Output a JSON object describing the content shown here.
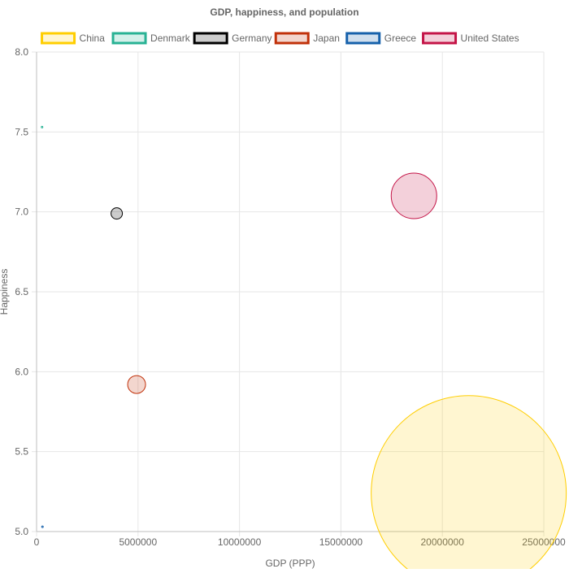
{
  "chart_data": {
    "type": "bubble",
    "title": "GDP, happiness, and population",
    "xlabel": "GDP (PPP)",
    "ylabel": "Happiness",
    "xlim": [
      0,
      25000000
    ],
    "ylim": [
      5.0,
      8.0
    ],
    "x_ticks": [
      0,
      5000000,
      10000000,
      15000000,
      20000000,
      25000000
    ],
    "x_tick_labels": [
      "0",
      "5000000",
      "10000000",
      "15000000",
      "20000000",
      "25000000"
    ],
    "y_ticks": [
      5.0,
      5.5,
      6.0,
      6.5,
      7.0,
      7.5,
      8.0
    ],
    "y_tick_labels": [
      "5.0",
      "5.5",
      "6.0",
      "6.5",
      "7.0",
      "7.5",
      "8.0"
    ],
    "grid": true,
    "legend_position": "top",
    "series": [
      {
        "name": "China",
        "color": "#ffce00",
        "fill": "rgba(255,206,0,0.18)",
        "points": [
          {
            "x": 21300000,
            "y": 5.24,
            "r": 120
          }
        ]
      },
      {
        "name": "Denmark",
        "color": "#28b294",
        "fill": "rgba(40,178,148,0.2)",
        "points": [
          {
            "x": 270000,
            "y": 7.53,
            "r": 1
          }
        ]
      },
      {
        "name": "Germany",
        "color": "#000000",
        "fill": "rgba(0,0,0,0.2)",
        "points": [
          {
            "x": 3950000,
            "y": 6.99,
            "r": 7
          }
        ]
      },
      {
        "name": "Japan",
        "color": "#c1310a",
        "fill": "rgba(193,49,10,0.2)",
        "points": [
          {
            "x": 4930000,
            "y": 5.92,
            "r": 11
          }
        ]
      },
      {
        "name": "Greece",
        "color": "#1661ab",
        "fill": "rgba(22,97,171,0.2)",
        "points": [
          {
            "x": 290000,
            "y": 5.03,
            "r": 1
          }
        ]
      },
      {
        "name": "United States",
        "color": "#c41447",
        "fill": "rgba(196,20,71,0.2)",
        "points": [
          {
            "x": 18600000,
            "y": 7.1,
            "r": 28
          }
        ]
      }
    ]
  }
}
